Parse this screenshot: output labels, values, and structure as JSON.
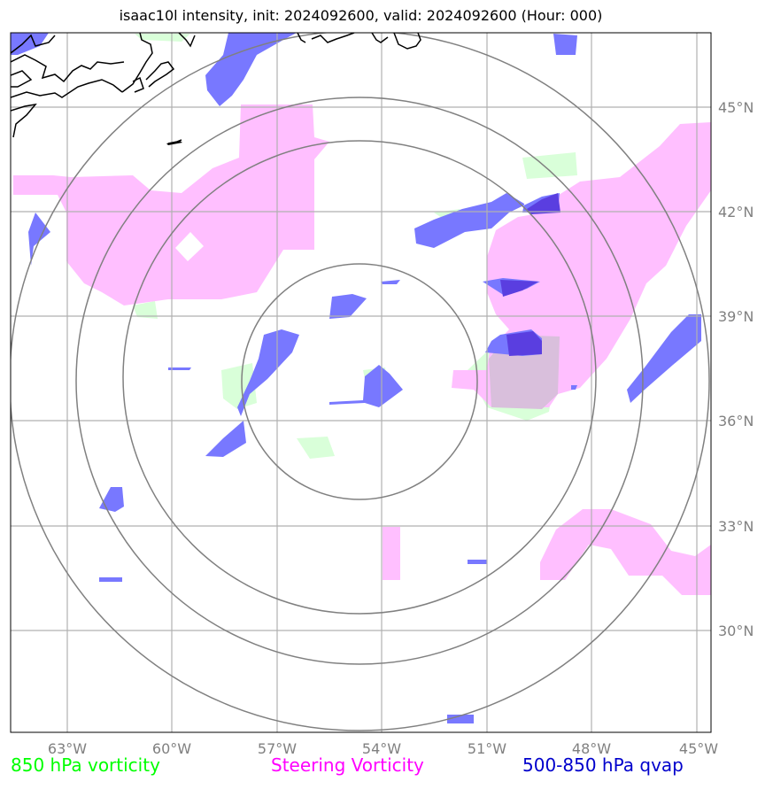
{
  "title": "isaac10l intensity, init: 2024092600, valid: 2024092600 (Hour: 000)",
  "x_ticks": [
    "63°W",
    "60°W",
    "57°W",
    "54°W",
    "51°W",
    "48°W",
    "45°W"
  ],
  "y_ticks": [
    "45°N",
    "42°N",
    "39°N",
    "36°N",
    "33°N",
    "30°N"
  ],
  "legend": [
    {
      "label": "850 hPa vorticity",
      "color": "#00ff00"
    },
    {
      "label": "Steering Vorticity",
      "color": "#ff00ff"
    },
    {
      "label": "500-850 hPa qvap",
      "color": "#0000cc"
    }
  ],
  "colors": {
    "vort850": "#d9ffd9",
    "steering": "#ffbfff",
    "qvap": "#7878ff",
    "qvap_dark": "#5a3ee0",
    "overlap": "#d9bfdc",
    "grid": "#b0b0b0",
    "range_rings": "#808080",
    "coastline": "#000000"
  }
}
